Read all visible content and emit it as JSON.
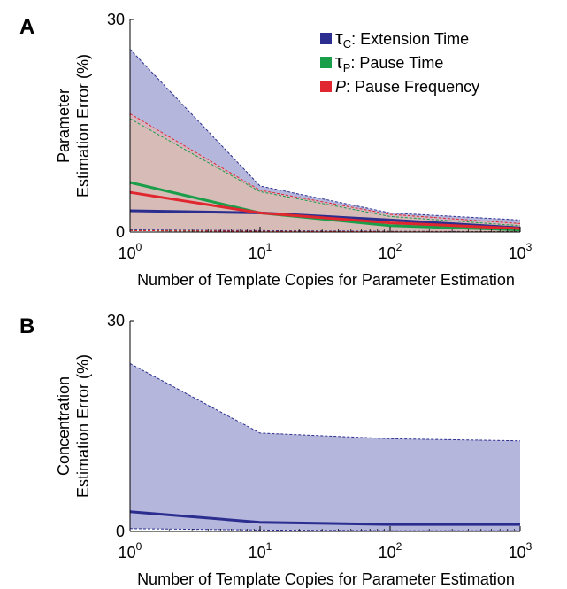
{
  "chart_data": [
    {
      "type": "area",
      "panel_label": "A",
      "ylabel_lines": [
        "Parameter",
        "Estimation Error (%)"
      ],
      "xlabel": "Number of Template Copies for Parameter Estimation",
      "xscale": "log",
      "x": [
        1,
        10,
        100,
        1000
      ],
      "x_ticks": [
        {
          "base": "10",
          "exp": "0"
        },
        {
          "base": "10",
          "exp": "1"
        },
        {
          "base": "10",
          "exp": "2"
        },
        {
          "base": "10",
          "exp": "3"
        }
      ],
      "ylim": [
        0,
        30
      ],
      "y_ticks": [
        "0",
        "30"
      ],
      "legend_position": "top-right",
      "series": [
        {
          "symbol": "τ",
          "subscript": "C",
          "name": ": Extension Time",
          "color": "#2b2e8f",
          "fill": "#b4b6dc",
          "mean": [
            3.0,
            2.7,
            1.7,
            0.6
          ],
          "lower": [
            0.3,
            0.2,
            0.1,
            0.05
          ],
          "upper": [
            25.8,
            6.5,
            2.7,
            1.7
          ]
        },
        {
          "symbol": "τ",
          "subscript": "P",
          "name": ": Pause Time",
          "color": "#1a9e4a",
          "fill": "#b4d6b4",
          "mean": [
            7.0,
            2.7,
            0.9,
            0.3
          ],
          "lower": [
            0.2,
            0.1,
            0.05,
            0.02
          ],
          "upper": [
            16.0,
            5.7,
            2.2,
            0.9
          ]
        },
        {
          "symbol": "P",
          "subscript": "",
          "name": ": Pause Frequency",
          "color": "#e0262e",
          "fill": "#e6b4b4",
          "mean": [
            5.6,
            2.7,
            1.3,
            0.5
          ],
          "lower": [
            0.2,
            0.1,
            0.05,
            0.02
          ],
          "upper": [
            16.7,
            5.9,
            2.5,
            1.2
          ]
        }
      ]
    },
    {
      "type": "area",
      "panel_label": "B",
      "ylabel_lines": [
        "Concentration",
        "Estimation Error (%)"
      ],
      "xlabel": "Number of Template Copies for Parameter Estimation",
      "xscale": "log",
      "x": [
        1,
        10,
        100,
        1000
      ],
      "x_ticks": [
        {
          "base": "10",
          "exp": "0"
        },
        {
          "base": "10",
          "exp": "1"
        },
        {
          "base": "10",
          "exp": "2"
        },
        {
          "base": "10",
          "exp": "3"
        }
      ],
      "ylim": [
        0,
        30
      ],
      "y_ticks": [
        "0",
        "30"
      ],
      "series": [
        {
          "color": "#2b2e8f",
          "fill": "#b4b6dc",
          "mean": [
            2.8,
            1.3,
            1.0,
            1.0
          ],
          "lower": [
            0.4,
            0.2,
            0.1,
            0.1
          ],
          "upper": [
            23.9,
            14.0,
            13.2,
            12.9
          ]
        }
      ]
    }
  ]
}
